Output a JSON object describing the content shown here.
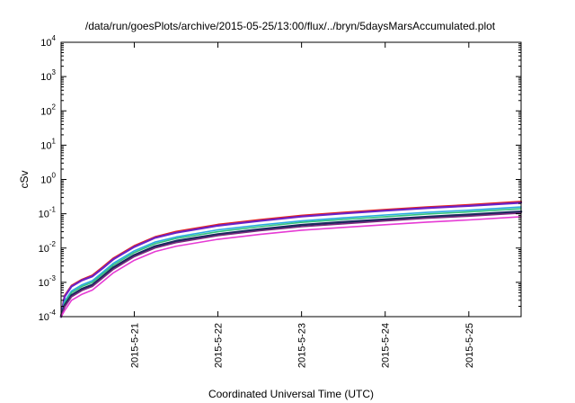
{
  "chart_data": {
    "type": "line",
    "title": "/data/run/goesPlots/archive/2015-05-25/13:00/flux/../bryn/5daysMarsAccumulated.plot",
    "xlabel": "Coordinated Universal Time (UTC)",
    "ylabel": "cSv",
    "y_scale": "log",
    "ylim": [
      0.0001,
      10000
    ],
    "xlim": [
      "2015-05-20 03:00",
      "2015-05-25 15:00"
    ],
    "x_ticks": [
      "2015-5-21",
      "2015-5-22",
      "2015-5-23",
      "2015-5-24",
      "2015-5-25"
    ],
    "y_ticks": [
      {
        "base": "10",
        "exp": "-4"
      },
      {
        "base": "10",
        "exp": "-3"
      },
      {
        "base": "10",
        "exp": "-2"
      },
      {
        "base": "10",
        "exp": "-1"
      },
      {
        "base": "10",
        "exp": "0"
      },
      {
        "base": "10",
        "exp": "1"
      },
      {
        "base": "10",
        "exp": "2"
      },
      {
        "base": "10",
        "exp": "3"
      },
      {
        "base": "10",
        "exp": "4"
      }
    ],
    "grid": false,
    "legend": "none",
    "series": [
      {
        "color": "#e8231c",
        "width": 2.2,
        "points": [
          [
            "2015-05-20 03:00",
            0.0001
          ],
          [
            "2015-05-20 04:00",
            0.0004
          ],
          [
            "2015-05-20 06:00",
            0.0008
          ],
          [
            "2015-05-20 09:00",
            0.0012
          ],
          [
            "2015-05-20 12:00",
            0.0016
          ],
          [
            "2015-05-20 15:00",
            0.0028
          ],
          [
            "2015-05-20 18:00",
            0.005
          ],
          [
            "2015-05-21 00:00",
            0.0115
          ],
          [
            "2015-05-21 06:00",
            0.021
          ],
          [
            "2015-05-21 12:00",
            0.03
          ],
          [
            "2015-05-22 00:00",
            0.048
          ],
          [
            "2015-05-22 12:00",
            0.066
          ],
          [
            "2015-05-23 00:00",
            0.088
          ],
          [
            "2015-05-23 12:00",
            0.108
          ],
          [
            "2015-05-24 00:00",
            0.13
          ],
          [
            "2015-05-24 12:00",
            0.155
          ],
          [
            "2015-05-25 00:00",
            0.18
          ],
          [
            "2015-05-25 15:00",
            0.225
          ]
        ]
      },
      {
        "color": "#6a22c8",
        "width": 2.2,
        "points": [
          [
            "2015-05-20 03:00",
            0.0001
          ],
          [
            "2015-05-20 04:00",
            0.00038
          ],
          [
            "2015-05-20 06:00",
            0.00076
          ],
          [
            "2015-05-20 09:00",
            0.00115
          ],
          [
            "2015-05-20 12:00",
            0.0015
          ],
          [
            "2015-05-20 15:00",
            0.0026
          ],
          [
            "2015-05-20 18:00",
            0.0047
          ],
          [
            "2015-05-21 00:00",
            0.0108
          ],
          [
            "2015-05-21 06:00",
            0.02
          ],
          [
            "2015-05-21 12:00",
            0.028
          ],
          [
            "2015-05-22 00:00",
            0.045
          ],
          [
            "2015-05-22 12:00",
            0.062
          ],
          [
            "2015-05-23 00:00",
            0.083
          ],
          [
            "2015-05-23 12:00",
            0.102
          ],
          [
            "2015-05-24 00:00",
            0.123
          ],
          [
            "2015-05-24 12:00",
            0.147
          ],
          [
            "2015-05-25 00:00",
            0.17
          ],
          [
            "2015-05-25 15:00",
            0.21
          ]
        ]
      },
      {
        "color": "#2aa8e0",
        "width": 1.6,
        "points": [
          [
            "2015-05-20 03:00",
            0.0001
          ],
          [
            "2015-05-20 04:00",
            0.00028
          ],
          [
            "2015-05-20 06:00",
            0.00056
          ],
          [
            "2015-05-20 09:00",
            0.00085
          ],
          [
            "2015-05-20 12:00",
            0.00112
          ],
          [
            "2015-05-20 15:00",
            0.002
          ],
          [
            "2015-05-20 18:00",
            0.0036
          ],
          [
            "2015-05-21 00:00",
            0.0083
          ],
          [
            "2015-05-21 06:00",
            0.015
          ],
          [
            "2015-05-21 12:00",
            0.021
          ],
          [
            "2015-05-22 00:00",
            0.034
          ],
          [
            "2015-05-22 12:00",
            0.047
          ],
          [
            "2015-05-23 00:00",
            0.062
          ],
          [
            "2015-05-23 12:00",
            0.076
          ],
          [
            "2015-05-24 00:00",
            0.092
          ],
          [
            "2015-05-24 12:00",
            0.11
          ],
          [
            "2015-05-25 00:00",
            0.127
          ],
          [
            "2015-05-25 15:00",
            0.158
          ]
        ]
      },
      {
        "color": "#2ec27e",
        "width": 1.6,
        "points": [
          [
            "2015-05-20 03:00",
            0.0001
          ],
          [
            "2015-05-20 04:00",
            0.00025
          ],
          [
            "2015-05-20 06:00",
            0.0005
          ],
          [
            "2015-05-20 09:00",
            0.00076
          ],
          [
            "2015-05-20 12:00",
            0.001
          ],
          [
            "2015-05-20 15:00",
            0.0018
          ],
          [
            "2015-05-20 18:00",
            0.0032
          ],
          [
            "2015-05-21 00:00",
            0.0074
          ],
          [
            "2015-05-21 06:00",
            0.0134
          ],
          [
            "2015-05-21 12:00",
            0.019
          ],
          [
            "2015-05-22 00:00",
            0.03
          ],
          [
            "2015-05-22 12:00",
            0.042
          ],
          [
            "2015-05-23 00:00",
            0.056
          ],
          [
            "2015-05-23 12:00",
            0.068
          ],
          [
            "2015-05-24 00:00",
            0.082
          ],
          [
            "2015-05-24 12:00",
            0.098
          ],
          [
            "2015-05-25 00:00",
            0.113
          ],
          [
            "2015-05-25 15:00",
            0.14
          ]
        ]
      },
      {
        "color": "#1a2a5e",
        "width": 2.6,
        "points": [
          [
            "2015-05-20 03:00",
            0.0001
          ],
          [
            "2015-05-20 04:00",
            0.00021
          ],
          [
            "2015-05-20 06:00",
            0.00042
          ],
          [
            "2015-05-20 09:00",
            0.00064
          ],
          [
            "2015-05-20 12:00",
            0.00084
          ],
          [
            "2015-05-20 15:00",
            0.0015
          ],
          [
            "2015-05-20 18:00",
            0.0027
          ],
          [
            "2015-05-21 00:00",
            0.0062
          ],
          [
            "2015-05-21 06:00",
            0.0112
          ],
          [
            "2015-05-21 12:00",
            0.016
          ],
          [
            "2015-05-22 00:00",
            0.025
          ],
          [
            "2015-05-22 12:00",
            0.035
          ],
          [
            "2015-05-23 00:00",
            0.047
          ],
          [
            "2015-05-23 12:00",
            0.057
          ],
          [
            "2015-05-24 00:00",
            0.068
          ],
          [
            "2015-05-24 12:00",
            0.081
          ],
          [
            "2015-05-25 00:00",
            0.094
          ],
          [
            "2015-05-25 15:00",
            0.115
          ]
        ]
      },
      {
        "color": "#7a2a7e",
        "width": 1.6,
        "points": [
          [
            "2015-05-20 03:00",
            0.0001
          ],
          [
            "2015-05-20 04:00",
            0.00019
          ],
          [
            "2015-05-20 06:00",
            0.00038
          ],
          [
            "2015-05-20 09:00",
            0.00058
          ],
          [
            "2015-05-20 12:00",
            0.00076
          ],
          [
            "2015-05-20 15:00",
            0.00135
          ],
          [
            "2015-05-20 18:00",
            0.0024
          ],
          [
            "2015-05-21 00:00",
            0.0056
          ],
          [
            "2015-05-21 06:00",
            0.0101
          ],
          [
            "2015-05-21 12:00",
            0.0144
          ],
          [
            "2015-05-22 00:00",
            0.023
          ],
          [
            "2015-05-22 12:00",
            0.032
          ],
          [
            "2015-05-23 00:00",
            0.042
          ],
          [
            "2015-05-23 12:00",
            0.051
          ],
          [
            "2015-05-24 00:00",
            0.062
          ],
          [
            "2015-05-24 12:00",
            0.074
          ],
          [
            "2015-05-25 00:00",
            0.085
          ],
          [
            "2015-05-25 15:00",
            0.105
          ]
        ]
      },
      {
        "color": "#e63ad4",
        "width": 1.6,
        "points": [
          [
            "2015-05-20 03:00",
            0.0001
          ],
          [
            "2015-05-20 04:00",
            0.00015
          ],
          [
            "2015-05-20 06:00",
            0.0003
          ],
          [
            "2015-05-20 09:00",
            0.00045
          ],
          [
            "2015-05-20 12:00",
            0.0006
          ],
          [
            "2015-05-20 15:00",
            0.00106
          ],
          [
            "2015-05-20 18:00",
            0.0019
          ],
          [
            "2015-05-21 00:00",
            0.0044
          ],
          [
            "2015-05-21 06:00",
            0.0079
          ],
          [
            "2015-05-21 12:00",
            0.0113
          ],
          [
            "2015-05-22 00:00",
            0.018
          ],
          [
            "2015-05-22 12:00",
            0.025
          ],
          [
            "2015-05-23 00:00",
            0.033
          ],
          [
            "2015-05-23 12:00",
            0.04
          ],
          [
            "2015-05-24 00:00",
            0.048
          ],
          [
            "2015-05-24 12:00",
            0.057
          ],
          [
            "2015-05-25 00:00",
            0.066
          ],
          [
            "2015-05-25 15:00",
            0.082
          ]
        ]
      }
    ]
  }
}
